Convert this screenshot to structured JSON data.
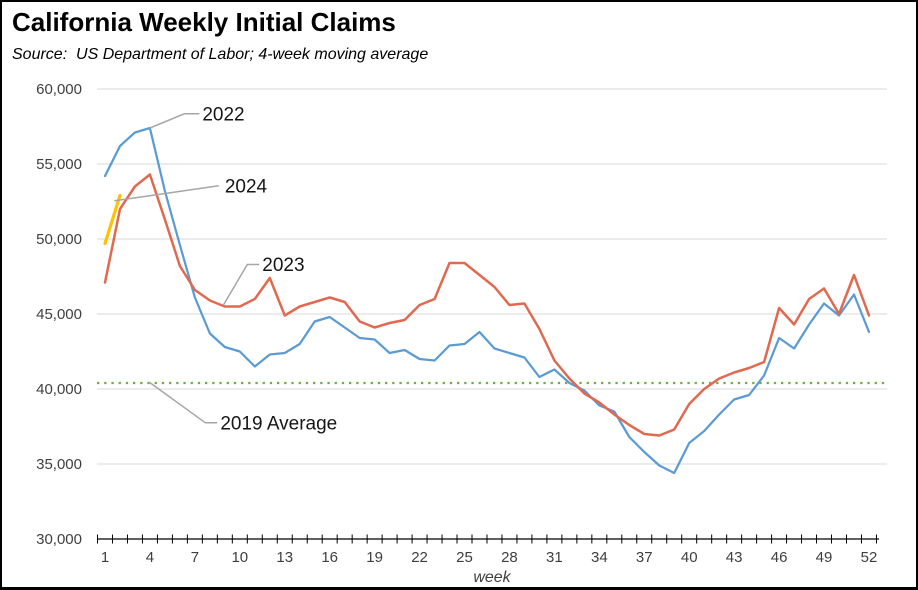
{
  "header": {
    "title": "California Weekly Initial Claims",
    "subtitle": "Source:  US Department of Labor; 4-week moving average"
  },
  "chart_data": {
    "type": "line",
    "title": "California Weekly Initial Claims",
    "subtitle": "Source:  US Department of Labor; 4-week moving average",
    "xlabel": "week",
    "ylabel": "",
    "weeks": 52,
    "ylim": [
      30000,
      60000
    ],
    "ytick_step": 5000,
    "y_tick_labels": [
      "30,000",
      "35,000",
      "40,000",
      "45,000",
      "50,000",
      "55,000",
      "60,000"
    ],
    "x_ticks_shown": [
      1,
      4,
      7,
      10,
      13,
      16,
      19,
      22,
      25,
      28,
      31,
      34,
      37,
      40,
      43,
      46,
      49,
      52
    ],
    "grid": true,
    "legend_position": "inline-annotations",
    "series": [
      {
        "name": "2022",
        "color": "#5B9BD5",
        "width": 2.25,
        "values": [
          54200,
          56200,
          57100,
          57400,
          53200,
          49600,
          46100,
          43700,
          42800,
          42500,
          41500,
          42300,
          42400,
          43000,
          44500,
          44800,
          44100,
          43400,
          43300,
          42400,
          42600,
          42000,
          41900,
          42900,
          43000,
          43800,
          42700,
          42400,
          42100,
          40800,
          41300,
          40400,
          39900,
          38900,
          38500,
          36800,
          35800,
          34900,
          34400,
          36400,
          37200,
          38300,
          39300,
          39600,
          40900,
          43400,
          42700,
          44300,
          45700,
          44900,
          46300,
          43800
        ]
      },
      {
        "name": "2023",
        "color": "#E0694F",
        "width": 2.5,
        "values": [
          47100,
          52000,
          53500,
          54300,
          51300,
          48200,
          46600,
          45900,
          45500,
          45500,
          46000,
          47400,
          44900,
          45500,
          45800,
          46100,
          45800,
          44500,
          44100,
          44400,
          44600,
          45600,
          46000,
          48400,
          48400,
          47600,
          46800,
          45600,
          45700,
          44000,
          41900,
          40700,
          39700,
          39100,
          38300,
          37600,
          37000,
          36900,
          37300,
          39000,
          40000,
          40700,
          41100,
          41400,
          41800,
          45400,
          44300,
          46000,
          46700,
          45000,
          47600,
          44900
        ]
      },
      {
        "name": "2024",
        "color": "#FFC000",
        "width": 3.2,
        "values": [
          49700,
          52900
        ]
      }
    ],
    "reference_line": {
      "label": "2019 Average",
      "value": 40400,
      "color": "#6FAC46",
      "style": "dotted"
    },
    "annotations": [
      {
        "text": "2022",
        "leader": [
          [
            4.0,
            57400
          ],
          [
            6.3,
            58350
          ],
          [
            7.3,
            58350
          ]
        ],
        "text_pos": [
          7.5,
          58350
        ]
      },
      {
        "text": "2024",
        "leader": [
          [
            1.62,
            52550
          ],
          [
            8.6,
            53550
          ]
        ],
        "text_pos": [
          9.0,
          53550
        ]
      },
      {
        "text": "2023",
        "leader": [
          [
            8.9,
            45580
          ],
          [
            10.5,
            48300
          ],
          [
            11.3,
            48300
          ]
        ],
        "text_pos": [
          11.5,
          48300
        ]
      },
      {
        "text": "2019 Average",
        "leader": [
          [
            4.0,
            40430
          ],
          [
            7.7,
            37750
          ],
          [
            8.5,
            37750
          ]
        ],
        "text_pos": [
          8.7,
          37750
        ]
      }
    ],
    "colors": {
      "gridline": "#d9d9d9",
      "axis": "#000000",
      "leader": "#a6a6a6",
      "tick_label": "#3f3f3f"
    }
  }
}
